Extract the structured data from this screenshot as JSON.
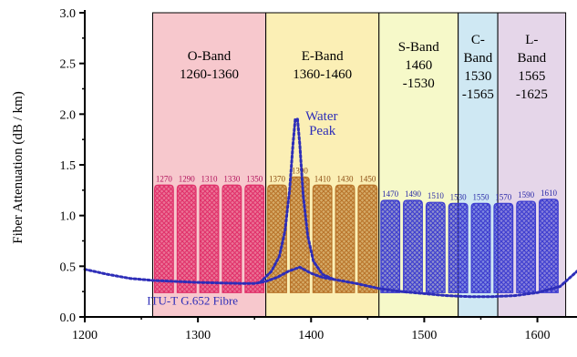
{
  "chart_data": {
    "type": "area",
    "xlabel": "",
    "ylabel": "Fiber Attenuation (dB / km)",
    "xlim": [
      1200,
      1635
    ],
    "ylim": [
      0.0,
      3.0
    ],
    "x_ticks": [
      1200,
      1300,
      1400,
      1500,
      1600
    ],
    "x_tick_labels": [
      "1200",
      "1300",
      "1400",
      "1500",
      "1600"
    ],
    "y_ticks": [
      0.0,
      0.5,
      1.0,
      1.5,
      2.0,
      2.5,
      3.0
    ],
    "y_tick_labels": [
      "0.0",
      "0.5",
      "1.0",
      "1.5",
      "2.0",
      "2.5",
      "3.0"
    ],
    "grid": false,
    "bands": [
      {
        "lines": [
          "O-Band",
          "1260-1360"
        ],
        "start": 1260,
        "end": 1360,
        "color": "#f7c8cd"
      },
      {
        "lines": [
          "E-Band",
          "1360-1460"
        ],
        "start": 1360,
        "end": 1460,
        "color": "#fbefb5"
      },
      {
        "lines": [
          "S-Band",
          "1460",
          "-1530"
        ],
        "start": 1460,
        "end": 1530,
        "color": "#f6f9c9"
      },
      {
        "lines": [
          "C-",
          "Band",
          "1530",
          "-1565"
        ],
        "start": 1530,
        "end": 1565,
        "color": "#cfe8f3"
      },
      {
        "lines": [
          "L-",
          "Band",
          "1565",
          "-1625"
        ],
        "start": 1565,
        "end": 1625,
        "color": "#e5d6e9"
      }
    ],
    "channels": [
      {
        "wl": 1270,
        "label": "1270",
        "peak": 1.3,
        "group": "O"
      },
      {
        "wl": 1290,
        "label": "1290",
        "peak": 1.3,
        "group": "O"
      },
      {
        "wl": 1310,
        "label": "1310",
        "peak": 1.3,
        "group": "O"
      },
      {
        "wl": 1330,
        "label": "1330",
        "peak": 1.3,
        "group": "O"
      },
      {
        "wl": 1350,
        "label": "1350",
        "peak": 1.3,
        "group": "O"
      },
      {
        "wl": 1370,
        "label": "1370",
        "peak": 1.3,
        "group": "E"
      },
      {
        "wl": 1390,
        "label": "1390",
        "peak": 1.38,
        "group": "E"
      },
      {
        "wl": 1410,
        "label": "1410",
        "peak": 1.3,
        "group": "E"
      },
      {
        "wl": 1430,
        "label": "1430",
        "peak": 1.3,
        "group": "E"
      },
      {
        "wl": 1450,
        "label": "1450",
        "peak": 1.3,
        "group": "E"
      },
      {
        "wl": 1470,
        "label": "1470",
        "peak": 1.15,
        "group": "SCL"
      },
      {
        "wl": 1490,
        "label": "1490",
        "peak": 1.15,
        "group": "SCL"
      },
      {
        "wl": 1510,
        "label": "1510",
        "peak": 1.13,
        "group": "SCL"
      },
      {
        "wl": 1530,
        "label": "1530",
        "peak": 1.12,
        "group": "SCL"
      },
      {
        "wl": 1550,
        "label": "1550",
        "peak": 1.12,
        "group": "SCL"
      },
      {
        "wl": 1570,
        "label": "1570",
        "peak": 1.12,
        "group": "SCL"
      },
      {
        "wl": 1590,
        "label": "1590",
        "peak": 1.14,
        "group": "SCL"
      },
      {
        "wl": 1610,
        "label": "1610",
        "peak": 1.16,
        "group": "SCL"
      }
    ],
    "channel_colors": {
      "O": "#e0306a",
      "E": "#b8742a",
      "SCL": "#3b3bcf"
    },
    "channel_label_colors": {
      "O": "#b0105a",
      "E": "#8a4a10",
      "SCL": "#2a2aa8"
    },
    "series": [
      {
        "name": "ITU-T G.652 Fibre",
        "color": "#2d2db8",
        "x": [
          1200,
          1220,
          1240,
          1260,
          1280,
          1300,
          1320,
          1340,
          1350,
          1360,
          1370,
          1380,
          1390,
          1400,
          1410,
          1420,
          1440,
          1460,
          1480,
          1500,
          1520,
          1540,
          1560,
          1580,
          1600,
          1620,
          1635
        ],
        "y": [
          0.47,
          0.42,
          0.38,
          0.36,
          0.35,
          0.34,
          0.335,
          0.33,
          0.33,
          0.35,
          0.39,
          0.45,
          0.49,
          0.43,
          0.39,
          0.37,
          0.33,
          0.28,
          0.25,
          0.23,
          0.21,
          0.2,
          0.2,
          0.21,
          0.24,
          0.3,
          0.45
        ]
      },
      {
        "name": "Water Peak",
        "color": "#2d2db8",
        "x": [
          1355,
          1365,
          1372,
          1377,
          1381,
          1384,
          1386,
          1388,
          1390,
          1393,
          1397,
          1402,
          1410,
          1420
        ],
        "y": [
          0.34,
          0.45,
          0.6,
          0.85,
          1.25,
          1.7,
          1.95,
          1.95,
          1.7,
          1.2,
          0.8,
          0.55,
          0.42,
          0.37
        ]
      }
    ],
    "annotations": {
      "water_peak": [
        "Water",
        "Peak"
      ],
      "fibre": "ITU-T G.652 Fibre"
    }
  }
}
